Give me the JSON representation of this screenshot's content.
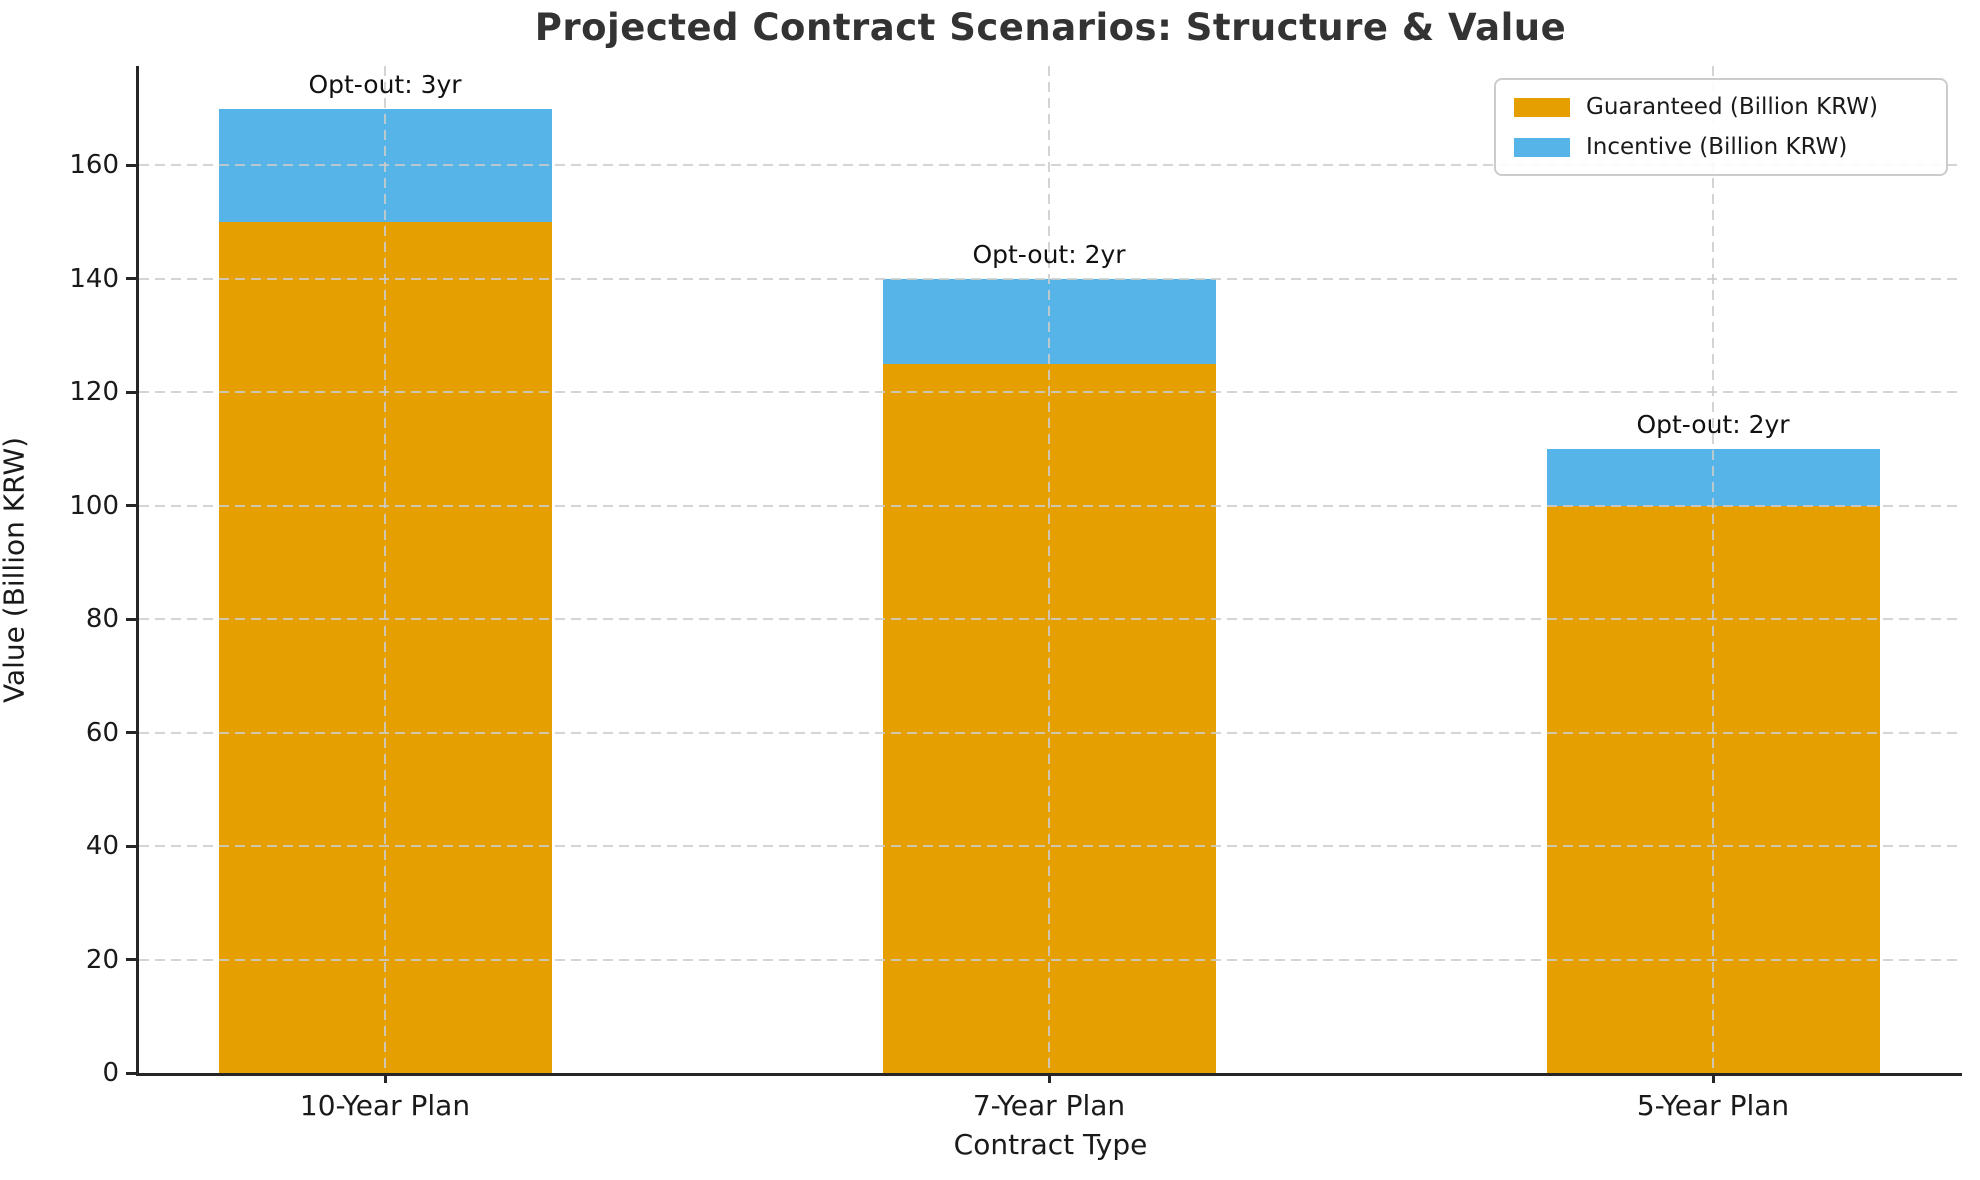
{
  "title": "Projected Contract Scenarios: Structure & Value",
  "chart_data": {
    "type": "bar",
    "stacked": true,
    "title": "Projected Contract Scenarios: Structure & Value",
    "categories": [
      "10-Year Plan",
      "7-Year Plan",
      "5-Year Plan"
    ],
    "series": [
      {
        "name": "Guaranteed (Billion KRW)",
        "color": "#E69F00",
        "values": [
          150,
          125,
          100
        ]
      },
      {
        "name": "Incentive (Billion KRW)",
        "color": "#56B4E9",
        "values": [
          20,
          15,
          10
        ]
      }
    ],
    "totals": [
      170,
      140,
      110
    ],
    "annotations": [
      "Opt-out: 3yr",
      "Opt-out: 2yr",
      "Opt-out: 2yr"
    ],
    "xlabel": "Contract Type",
    "ylabel": "Value (Billion KRW)",
    "ylim": [
      0,
      177.5
    ],
    "yticks": [
      0,
      20,
      40,
      60,
      80,
      100,
      120,
      140,
      160
    ],
    "grid": "dashed, both axes, drawn above bars",
    "legend_position": "upper-right",
    "spine_color": "#262626",
    "grid_color": "#cccccc",
    "background_color": "#ffffff"
  }
}
